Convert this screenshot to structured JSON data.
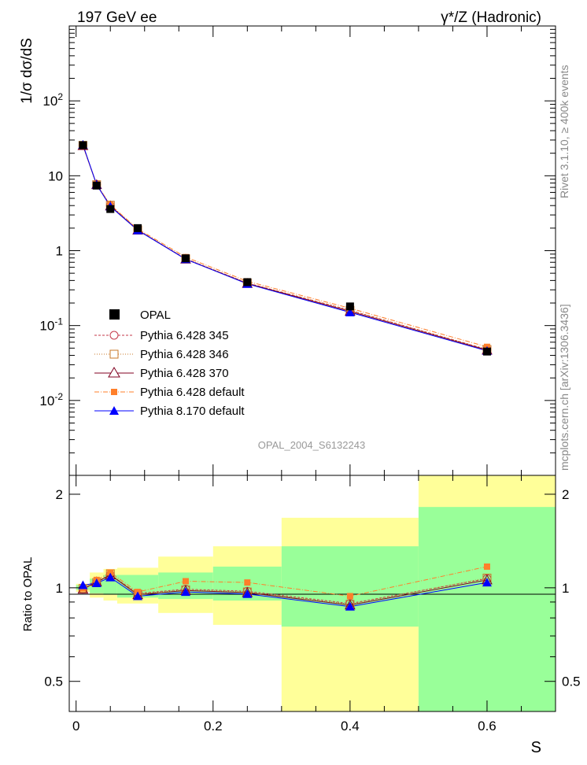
{
  "header": {
    "left": "197 GeV ee",
    "right": "γ*/Z (Hadronic)"
  },
  "side_text": {
    "top": "Rivet 3.1.10, ≥ 400k events",
    "bottom": "mcplots.cern.ch [arXiv:1306.3436]"
  },
  "watermark": "OPAL_2004_S6132243",
  "colors": {
    "band_yellow": "#ffff99",
    "band_green": "#99ff99",
    "p345": "#c43a4a",
    "p346": "#c8782a",
    "p370": "#800020",
    "pdef": "#ff7f2a",
    "p8": "#0000ff",
    "opal": "#000000"
  },
  "chart_data": [
    {
      "type": "line",
      "panel": "main",
      "ylabel": "1/σ dσ/dS",
      "y_scale": "log",
      "ylim": [
        0.001,
        1000
      ],
      "xlim": [
        -0.01,
        0.7
      ],
      "ytick_labels": [
        "10^-2",
        "10^-1",
        "1",
        "10",
        "10^2"
      ],
      "legend_placement": "center-left",
      "x": [
        0.01,
        0.03,
        0.05,
        0.09,
        0.16,
        0.25,
        0.4,
        0.6
      ],
      "series": [
        {
          "name": "OPAL",
          "values": [
            25.6,
            7.4,
            3.6,
            2.0,
            0.79,
            0.38,
            0.18,
            0.045
          ]
        },
        {
          "name": "Pythia 6.428 345",
          "values": [
            25.4,
            7.65,
            4.0,
            1.9,
            0.78,
            0.37,
            0.16,
            0.048
          ]
        },
        {
          "name": "Pythia 6.428 346",
          "values": [
            25.5,
            7.6,
            4.05,
            1.9,
            0.78,
            0.37,
            0.16,
            0.048
          ]
        },
        {
          "name": "Pythia 6.428 370",
          "values": [
            25.3,
            7.6,
            3.95,
            1.88,
            0.77,
            0.365,
            0.155,
            0.047
          ]
        },
        {
          "name": "Pythia 6.428 default",
          "values": [
            25.4,
            7.7,
            4.1,
            1.95,
            0.82,
            0.39,
            0.17,
            0.052
          ]
        },
        {
          "name": "Pythia 8.170 default",
          "values": [
            26.0,
            7.6,
            3.9,
            1.87,
            0.77,
            0.36,
            0.15,
            0.046
          ]
        }
      ]
    },
    {
      "type": "line",
      "panel": "ratio",
      "ylabel": "Ratio to OPAL",
      "xlabel": "S",
      "ylim": [
        0.4,
        2.3
      ],
      "xlim": [
        -0.01,
        0.7
      ],
      "xtick_labels": [
        "0",
        "0.2",
        "0.4",
        "0.6"
      ],
      "ytick_labels": [
        "0.5",
        "1",
        "2"
      ],
      "bins": [
        [
          0.0,
          0.02
        ],
        [
          0.02,
          0.04
        ],
        [
          0.04,
          0.06
        ],
        [
          0.06,
          0.12
        ],
        [
          0.12,
          0.2
        ],
        [
          0.2,
          0.3
        ],
        [
          0.3,
          0.5
        ],
        [
          0.5,
          0.7
        ]
      ],
      "band_green": [
        [
          0.985,
          1.02
        ],
        [
          0.96,
          1.07
        ],
        [
          0.95,
          1.1
        ],
        [
          0.93,
          1.1
        ],
        [
          0.92,
          1.12
        ],
        [
          0.91,
          1.17
        ],
        [
          0.75,
          1.36
        ],
        [
          0.4,
          1.82
        ]
      ],
      "band_yellow": [
        [
          0.97,
          1.03
        ],
        [
          0.93,
          1.12
        ],
        [
          0.91,
          1.15
        ],
        [
          0.89,
          1.16
        ],
        [
          0.83,
          1.26
        ],
        [
          0.76,
          1.36
        ],
        [
          0.4,
          1.68
        ],
        [
          0.4,
          2.3
        ]
      ],
      "x": [
        0.01,
        0.03,
        0.05,
        0.09,
        0.16,
        0.25,
        0.4,
        0.6
      ],
      "series": [
        {
          "name": "Pythia 6.428 345",
          "values": [
            0.99,
            1.04,
            1.1,
            0.96,
            0.99,
            0.975,
            0.89,
            1.07
          ]
        },
        {
          "name": "Pythia 6.428 346",
          "values": [
            0.995,
            1.04,
            1.11,
            0.955,
            0.985,
            0.97,
            0.885,
            1.075
          ]
        },
        {
          "name": "Pythia 6.428 370",
          "values": [
            0.99,
            1.045,
            1.1,
            0.95,
            0.98,
            0.965,
            0.88,
            1.06
          ]
        },
        {
          "name": "Pythia 6.428 default",
          "values": [
            0.995,
            1.06,
            1.12,
            0.97,
            1.05,
            1.04,
            0.94,
            1.17
          ]
        },
        {
          "name": "Pythia 8.170 default",
          "values": [
            1.02,
            1.035,
            1.08,
            0.94,
            0.97,
            0.955,
            0.87,
            1.04
          ]
        }
      ]
    }
  ]
}
